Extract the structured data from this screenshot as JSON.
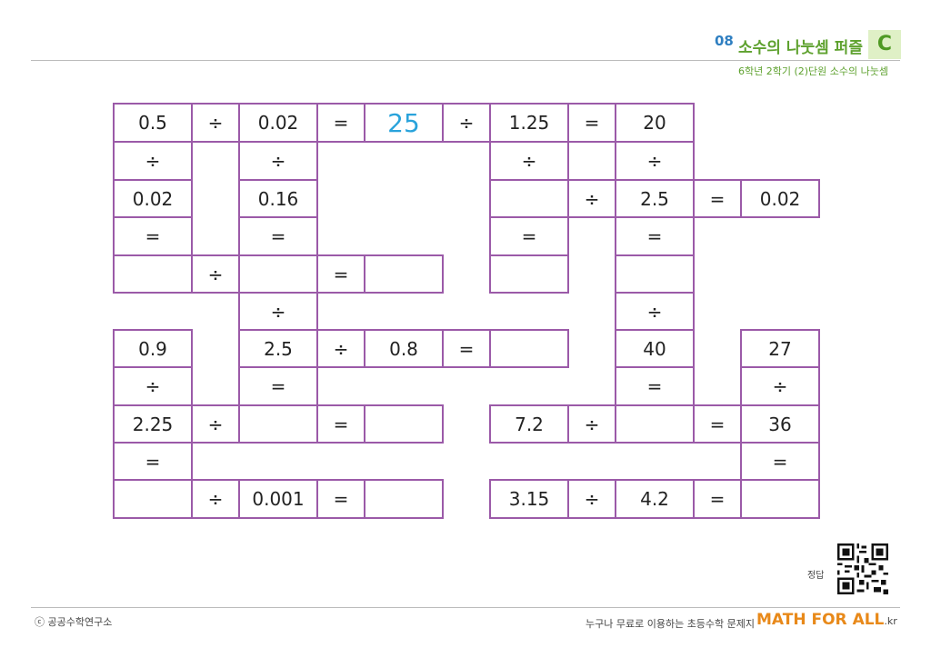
{
  "header": {
    "number": "08",
    "title": "소수의 나눗셈 퍼즐",
    "level": "C",
    "subtitle": "6학년 2학기 (2)단원 소수의 나눗셈"
  },
  "puzzle": {
    "cells": [
      {
        "r": 0,
        "c": 0,
        "v": "0.5"
      },
      {
        "r": 0,
        "c": 1,
        "v": "÷"
      },
      {
        "r": 0,
        "c": 2,
        "v": "0.02"
      },
      {
        "r": 0,
        "c": 3,
        "v": "="
      },
      {
        "r": 0,
        "c": 4,
        "v": "25",
        "hl": true
      },
      {
        "r": 0,
        "c": 5,
        "v": "÷"
      },
      {
        "r": 0,
        "c": 6,
        "v": "1.25"
      },
      {
        "r": 0,
        "c": 7,
        "v": "="
      },
      {
        "r": 0,
        "c": 8,
        "v": "20"
      },
      {
        "r": 1,
        "c": 0,
        "v": "÷"
      },
      {
        "r": 1,
        "c": 2,
        "v": "÷"
      },
      {
        "r": 1,
        "c": 6,
        "v": "÷"
      },
      {
        "r": 1,
        "c": 8,
        "v": "÷"
      },
      {
        "r": 2,
        "c": 0,
        "v": "0.02"
      },
      {
        "r": 2,
        "c": 2,
        "v": "0.16"
      },
      {
        "r": 2,
        "c": 6,
        "v": ""
      },
      {
        "r": 2,
        "c": 7,
        "v": "÷"
      },
      {
        "r": 2,
        "c": 8,
        "v": "2.5"
      },
      {
        "r": 2,
        "c": 9,
        "v": "="
      },
      {
        "r": 2,
        "c": 10,
        "v": "0.02"
      },
      {
        "r": 3,
        "c": 0,
        "v": "="
      },
      {
        "r": 3,
        "c": 2,
        "v": "="
      },
      {
        "r": 3,
        "c": 6,
        "v": "="
      },
      {
        "r": 3,
        "c": 8,
        "v": "="
      },
      {
        "r": 4,
        "c": 0,
        "v": ""
      },
      {
        "r": 4,
        "c": 1,
        "v": "÷"
      },
      {
        "r": 4,
        "c": 2,
        "v": ""
      },
      {
        "r": 4,
        "c": 3,
        "v": "="
      },
      {
        "r": 4,
        "c": 4,
        "v": ""
      },
      {
        "r": 4,
        "c": 6,
        "v": ""
      },
      {
        "r": 4,
        "c": 8,
        "v": ""
      },
      {
        "r": 5,
        "c": 2,
        "v": "÷"
      },
      {
        "r": 5,
        "c": 8,
        "v": "÷"
      },
      {
        "r": 6,
        "c": 0,
        "v": "0.9"
      },
      {
        "r": 6,
        "c": 2,
        "v": "2.5"
      },
      {
        "r": 6,
        "c": 3,
        "v": "÷"
      },
      {
        "r": 6,
        "c": 4,
        "v": "0.8"
      },
      {
        "r": 6,
        "c": 5,
        "v": "="
      },
      {
        "r": 6,
        "c": 6,
        "v": ""
      },
      {
        "r": 6,
        "c": 8,
        "v": "40"
      },
      {
        "r": 6,
        "c": 10,
        "v": "27"
      },
      {
        "r": 7,
        "c": 0,
        "v": "÷"
      },
      {
        "r": 7,
        "c": 2,
        "v": "="
      },
      {
        "r": 7,
        "c": 8,
        "v": "="
      },
      {
        "r": 7,
        "c": 10,
        "v": "÷"
      },
      {
        "r": 8,
        "c": 0,
        "v": "2.25"
      },
      {
        "r": 8,
        "c": 1,
        "v": "÷"
      },
      {
        "r": 8,
        "c": 2,
        "v": ""
      },
      {
        "r": 8,
        "c": 3,
        "v": "="
      },
      {
        "r": 8,
        "c": 4,
        "v": ""
      },
      {
        "r": 8,
        "c": 6,
        "v": "7.2"
      },
      {
        "r": 8,
        "c": 7,
        "v": "÷"
      },
      {
        "r": 8,
        "c": 8,
        "v": ""
      },
      {
        "r": 8,
        "c": 9,
        "v": "="
      },
      {
        "r": 8,
        "c": 10,
        "v": "36"
      },
      {
        "r": 9,
        "c": 0,
        "v": "="
      },
      {
        "r": 9,
        "c": 10,
        "v": "="
      },
      {
        "r": 10,
        "c": 0,
        "v": ""
      },
      {
        "r": 10,
        "c": 1,
        "v": "÷"
      },
      {
        "r": 10,
        "c": 2,
        "v": "0.001"
      },
      {
        "r": 10,
        "c": 3,
        "v": "="
      },
      {
        "r": 10,
        "c": 4,
        "v": ""
      },
      {
        "r": 10,
        "c": 6,
        "v": "3.15"
      },
      {
        "r": 10,
        "c": 7,
        "v": "÷"
      },
      {
        "r": 10,
        "c": 8,
        "v": "4.2"
      },
      {
        "r": 10,
        "c": 9,
        "v": "="
      },
      {
        "r": 10,
        "c": 10,
        "v": ""
      }
    ]
  },
  "answer_label": "정답",
  "footer": {
    "left": "ⓒ 공공수학연구소",
    "right": "누구나 무료로 이용하는 초등수학 문제지",
    "brand": "MATH FOR ALL",
    "brand_suffix": ".kr"
  },
  "colors": {
    "border": "#9b5aa8",
    "highlight": "#29a3db",
    "title": "#5ea12e",
    "brand": "#e8891a"
  }
}
